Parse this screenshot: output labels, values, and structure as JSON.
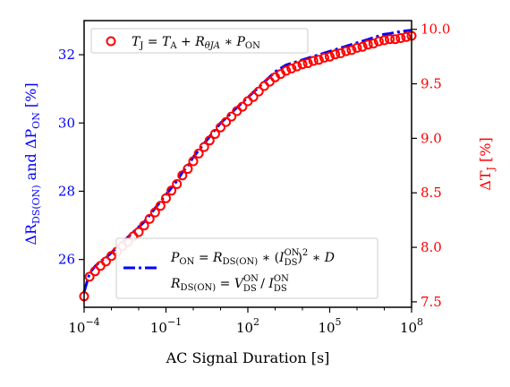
{
  "chart_data": {
    "type": "scatter",
    "xscale": "log",
    "xlabel": "AC Signal Duration [s]",
    "xlim": [
      0.0001,
      100000000
    ],
    "ylim_left": [
      24.6,
      33.0
    ],
    "ylim_right": [
      7.45,
      10.08
    ],
    "ylabel_left": {
      "base": "ΔR",
      "sub1": "DS(ON)",
      "mid": " and ΔP",
      "sub2": "ON",
      "unit": " [%]"
    },
    "ylabel_right": {
      "base": "ΔT",
      "sub": "J",
      "unit": " [%]"
    },
    "left_color": "#0000ff",
    "right_color": "#ff0000",
    "x_ticks": [
      {
        "value": 0.0001,
        "base": "10",
        "exp": "−4"
      },
      {
        "value": 0.1,
        "base": "10",
        "exp": "−1"
      },
      {
        "value": 100,
        "base": "10",
        "exp": "2"
      },
      {
        "value": 100000,
        "base": "10",
        "exp": "5"
      },
      {
        "value": 100000000,
        "base": "10",
        "exp": "8"
      }
    ],
    "y_ticks_left": [
      {
        "value": 26,
        "label": "26"
      },
      {
        "value": 28,
        "label": "28"
      },
      {
        "value": 30,
        "label": "30"
      },
      {
        "value": 32,
        "label": "32"
      }
    ],
    "y_ticks_right": [
      {
        "value": 7.5,
        "label": "7.5"
      },
      {
        "value": 8.0,
        "label": "8.0"
      },
      {
        "value": 8.5,
        "label": "8.5"
      },
      {
        "value": 9.0,
        "label": "9.0"
      },
      {
        "value": 9.5,
        "label": "9.5"
      },
      {
        "value": 10.0,
        "label": "10.0"
      }
    ],
    "legend_top": {
      "position": "top-left",
      "formula": "T_J = T_A + R_θJA * P_ON"
    },
    "legend_bottom": {
      "position": "lower-right",
      "line1": "P_ON = R_DS(ON) * (I_DS^ON)^2 * D",
      "line2": "R_DS(ON) = V_DS^ON / I_DS^ON"
    },
    "series": [
      {
        "axis": "left",
        "style": "dashdot",
        "log10x": [
          -4.0,
          -3.8,
          -3.6,
          -3.4,
          -3.2,
          -3.0,
          -2.8,
          -2.6,
          -2.4,
          -2.2,
          -2.0,
          -1.8,
          -1.6,
          -1.4,
          -1.2,
          -1.0,
          -0.8,
          -0.6,
          -0.4,
          -0.2,
          0.0,
          0.2,
          0.4,
          0.6,
          0.8,
          1.0,
          1.2,
          1.4,
          1.6,
          1.8,
          2.0,
          2.2,
          2.4,
          2.6,
          2.8,
          3.0,
          3.2,
          3.4,
          3.6,
          3.8,
          4.0,
          4.2,
          4.4,
          4.6,
          4.8,
          5.0,
          5.2,
          5.4,
          5.6,
          5.8,
          6.0,
          6.2,
          6.4,
          6.6,
          6.8,
          7.0,
          7.2,
          7.4,
          7.6,
          7.8,
          8.0
        ],
        "y": [
          25.05,
          25.6,
          25.8,
          25.95,
          26.05,
          26.2,
          26.35,
          26.5,
          26.65,
          26.8,
          26.95,
          27.1,
          27.3,
          27.5,
          27.7,
          27.9,
          28.1,
          28.3,
          28.55,
          28.75,
          29.0,
          29.2,
          29.4,
          29.6,
          29.8,
          30.0,
          30.15,
          30.3,
          30.45,
          30.6,
          30.75,
          30.9,
          31.05,
          31.2,
          31.35,
          31.5,
          31.6,
          31.7,
          31.75,
          31.8,
          31.85,
          31.9,
          31.95,
          32.0,
          32.05,
          32.1,
          32.15,
          32.2,
          32.25,
          32.3,
          32.35,
          32.4,
          32.45,
          32.5,
          32.55,
          32.6,
          32.62,
          32.65,
          32.68,
          32.7,
          32.72
        ]
      },
      {
        "axis": "right",
        "style": "open-circle",
        "log10x": [
          -4.0,
          -3.8,
          -3.6,
          -3.4,
          -3.2,
          -3.0,
          -2.8,
          -2.6,
          -2.4,
          -2.2,
          -2.0,
          -1.8,
          -1.6,
          -1.4,
          -1.2,
          -1.0,
          -0.8,
          -0.6,
          -0.4,
          -0.2,
          0.0,
          0.2,
          0.4,
          0.6,
          0.8,
          1.0,
          1.2,
          1.4,
          1.6,
          1.8,
          2.0,
          2.2,
          2.4,
          2.6,
          2.8,
          3.0,
          3.2,
          3.4,
          3.6,
          3.8,
          4.0,
          4.2,
          4.4,
          4.6,
          4.8,
          5.0,
          5.2,
          5.4,
          5.6,
          5.8,
          6.0,
          6.2,
          6.4,
          6.6,
          6.8,
          7.0,
          7.2,
          7.4,
          7.6,
          7.8,
          8.0
        ],
        "y": [
          7.55,
          7.73,
          7.78,
          7.83,
          7.87,
          7.92,
          7.96,
          8.01,
          8.05,
          8.1,
          8.14,
          8.2,
          8.26,
          8.32,
          8.38,
          8.45,
          8.52,
          8.58,
          8.66,
          8.72,
          8.79,
          8.86,
          8.92,
          8.98,
          9.04,
          9.1,
          9.15,
          9.2,
          9.25,
          9.29,
          9.34,
          9.38,
          9.43,
          9.48,
          9.52,
          9.56,
          9.59,
          9.62,
          9.64,
          9.66,
          9.68,
          9.69,
          9.71,
          9.72,
          9.74,
          9.75,
          9.77,
          9.78,
          9.8,
          9.81,
          9.83,
          9.84,
          9.86,
          9.87,
          9.89,
          9.9,
          9.91,
          9.91,
          9.92,
          9.93,
          9.94
        ]
      }
    ]
  }
}
